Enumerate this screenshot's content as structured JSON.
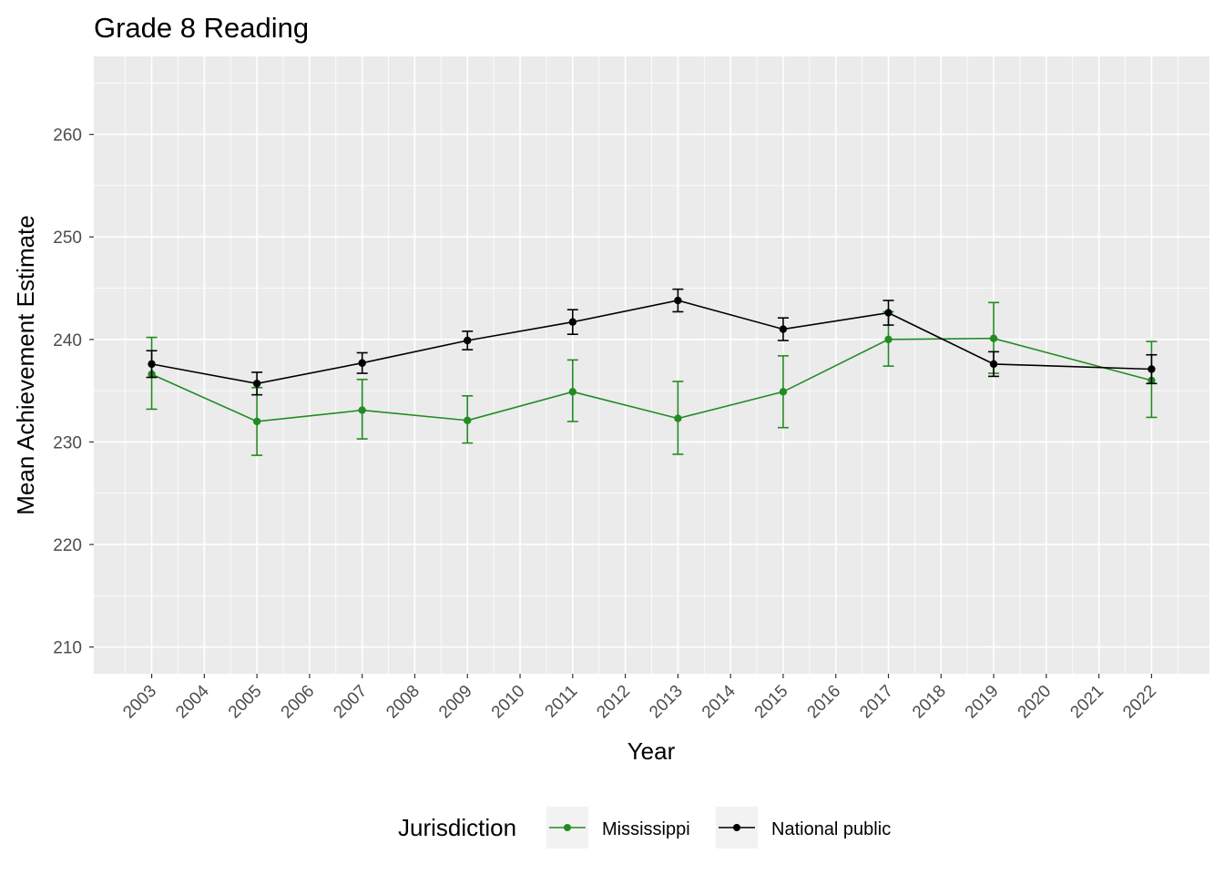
{
  "chart_data": {
    "type": "line",
    "title": "Grade 8 Reading",
    "xlabel": "Year",
    "ylabel": "Mean Achievement Estimate",
    "x_ticks": [
      2003,
      2004,
      2005,
      2006,
      2007,
      2008,
      2009,
      2010,
      2011,
      2012,
      2013,
      2014,
      2015,
      2016,
      2017,
      2018,
      2019,
      2020,
      2021,
      2022
    ],
    "y_ticks": [
      210,
      220,
      230,
      240,
      250,
      260
    ],
    "xlim": [
      2001.9,
      2023.1
    ],
    "ylim": [
      207.4,
      267.6
    ],
    "grid": true,
    "legend": {
      "title": "Jurisdiction",
      "position": "bottom"
    },
    "series": [
      {
        "name": "Mississippi",
        "color": "#228B22",
        "points": [
          {
            "x": 2003,
            "y": 236.6,
            "lo": 233.2,
            "hi": 240.2
          },
          {
            "x": 2005,
            "y": 232.0,
            "lo": 228.7,
            "hi": 235.3
          },
          {
            "x": 2007,
            "y": 233.1,
            "lo": 230.3,
            "hi": 236.1
          },
          {
            "x": 2009,
            "y": 232.1,
            "lo": 229.9,
            "hi": 234.5
          },
          {
            "x": 2011,
            "y": 234.9,
            "lo": 232.0,
            "hi": 238.0
          },
          {
            "x": 2013,
            "y": 232.3,
            "lo": 228.8,
            "hi": 235.9
          },
          {
            "x": 2015,
            "y": 234.9,
            "lo": 231.4,
            "hi": 238.4
          },
          {
            "x": 2017,
            "y": 240.0,
            "lo": 237.4,
            "hi": 242.7
          },
          {
            "x": 2019,
            "y": 240.1,
            "lo": 236.7,
            "hi": 243.6
          },
          {
            "x": 2022,
            "y": 236.0,
            "lo": 232.4,
            "hi": 239.8
          }
        ]
      },
      {
        "name": "National public",
        "color": "#000000",
        "points": [
          {
            "x": 2003,
            "y": 237.6,
            "lo": 236.3,
            "hi": 238.9
          },
          {
            "x": 2005,
            "y": 235.7,
            "lo": 234.6,
            "hi": 236.8
          },
          {
            "x": 2007,
            "y": 237.7,
            "lo": 236.7,
            "hi": 238.7
          },
          {
            "x": 2009,
            "y": 239.9,
            "lo": 239.0,
            "hi": 240.8
          },
          {
            "x": 2011,
            "y": 241.7,
            "lo": 240.5,
            "hi": 242.9
          },
          {
            "x": 2013,
            "y": 243.8,
            "lo": 242.7,
            "hi": 244.9
          },
          {
            "x": 2015,
            "y": 241.0,
            "lo": 239.9,
            "hi": 242.1
          },
          {
            "x": 2017,
            "y": 242.6,
            "lo": 241.4,
            "hi": 243.8
          },
          {
            "x": 2019,
            "y": 237.6,
            "lo": 236.4,
            "hi": 238.8
          },
          {
            "x": 2022,
            "y": 237.1,
            "lo": 235.7,
            "hi": 238.5
          }
        ]
      }
    ]
  }
}
